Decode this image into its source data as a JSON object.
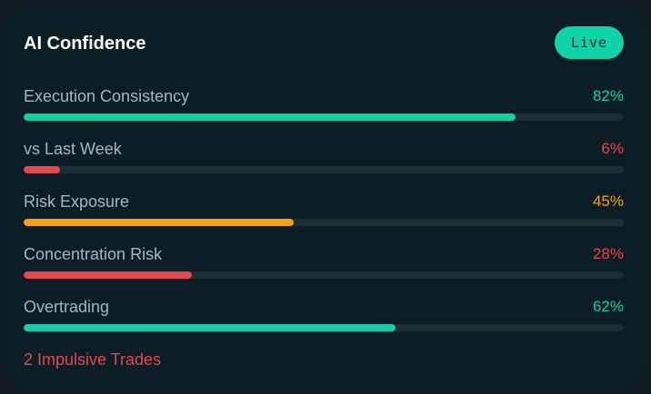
{
  "card": {
    "title": "AI Confidence",
    "badge_label": "Live"
  },
  "metrics": [
    {
      "label": "Execution Consistency",
      "value_text": "82%",
      "value": 0.82,
      "color": "#10d0a7"
    },
    {
      "label": "vs Last Week",
      "value_text": "6%",
      "value": 0.06,
      "color": "#e8474b"
    },
    {
      "label": "Risk Exposure",
      "value_text": "45%",
      "value": 0.45,
      "color": "#f5a10d"
    },
    {
      "label": "Concentration Risk",
      "value_text": "28%",
      "value": 0.28,
      "color": "#e8474b"
    },
    {
      "label": "Overtrading",
      "value_text": "62%",
      "value": 0.62,
      "color": "#10d0a7"
    }
  ],
  "footer": {
    "note": "2 Impulsive Trades",
    "color": "#e8474b"
  }
}
